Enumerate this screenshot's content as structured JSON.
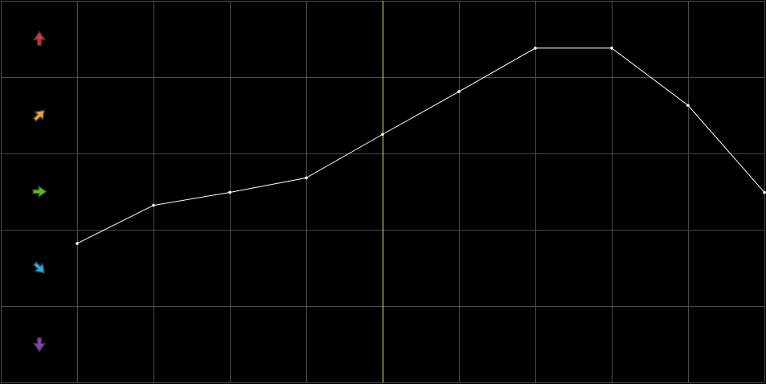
{
  "chart_data": {
    "type": "line",
    "title": "",
    "xlabel": "",
    "ylabel": "",
    "x": [
      1,
      2,
      3,
      4,
      5,
      6,
      7,
      8,
      9,
      10
    ],
    "series": [
      {
        "values": [
          1.82,
          2.32,
          2.49,
          2.68,
          3.25,
          3.81,
          4.38,
          4.38,
          3.63,
          2.49
        ],
        "color": "#ffffff"
      }
    ],
    "xlim": [
      0,
      10
    ],
    "ylim": [
      0,
      5
    ],
    "grid": true,
    "grid_color": "#4a4a4a",
    "background": "#000000",
    "marker_line": {
      "x": 5,
      "color": "#e6e08a"
    },
    "row_icons": [
      {
        "name": "arrow-up-icon",
        "color": "#e0303c"
      },
      {
        "name": "arrow-up-right-icon",
        "color": "#f0a030"
      },
      {
        "name": "arrow-right-icon",
        "color": "#5cc018"
      },
      {
        "name": "arrow-down-right-icon",
        "color": "#20b0e8"
      },
      {
        "name": "arrow-down-icon",
        "color": "#9040b8"
      }
    ]
  }
}
